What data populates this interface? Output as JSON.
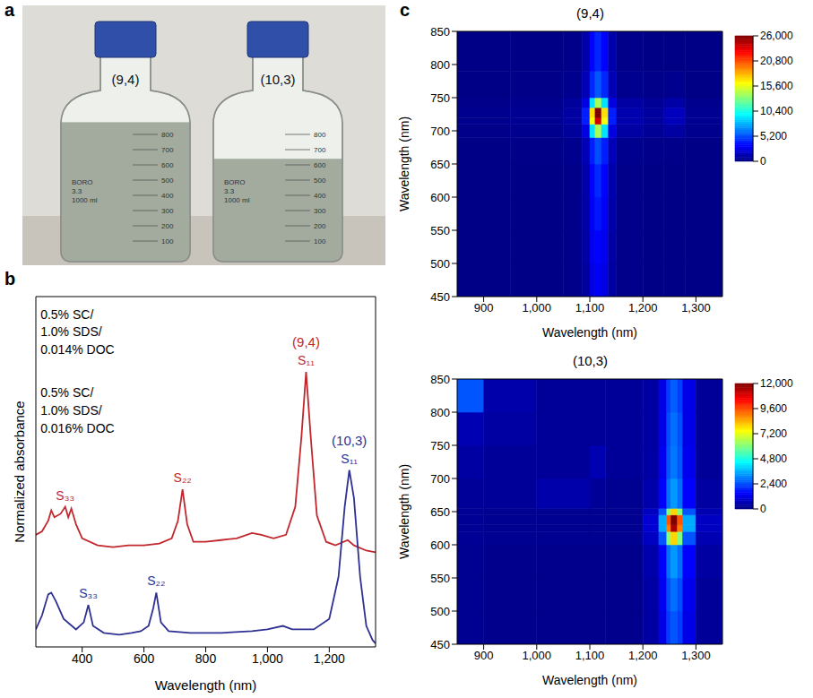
{
  "photo": {
    "label": "a",
    "bottles": [
      {
        "name": "(9,4)",
        "liquid_ml": 880
      },
      {
        "name": "(10,3)",
        "liquid_ml": 640
      }
    ],
    "graduations": [
      100,
      200,
      300,
      400,
      500,
      600,
      700,
      800
    ],
    "marking": [
      "BORO",
      "3.3",
      "1000 ml"
    ]
  },
  "chart_data": [
    {
      "label": "b",
      "type": "line",
      "xlabel": "Wavelength (nm)",
      "ylabel": "Normalized absorbance",
      "xlim": [
        250,
        1350
      ],
      "xticks": [
        400,
        600,
        800,
        {
          "value": 1000,
          "label": "1,000"
        },
        {
          "value": 1200,
          "label": "1,200"
        }
      ],
      "ylim": [
        0,
        2
      ],
      "tick_labels": "x",
      "series": [
        {
          "name": "(9,4)",
          "color": "#c1272d",
          "conditions": [
            "0.5% SC/",
            "1.0% SDS/",
            "0.014% DOC"
          ],
          "peaks": [
            {
              "label": "S₃₃",
              "x": 345
            },
            {
              "label": "S₂₂",
              "x": 725
            },
            {
              "label": "S₁₁",
              "x": 1125
            }
          ],
          "x": [
            250,
            270,
            290,
            300,
            310,
            330,
            345,
            355,
            365,
            380,
            400,
            450,
            500,
            550,
            600,
            650,
            690,
            710,
            725,
            740,
            760,
            800,
            850,
            900,
            950,
            980,
            1020,
            1060,
            1090,
            1110,
            1125,
            1140,
            1160,
            1190,
            1220,
            1260,
            1280,
            1320,
            1350
          ],
          "values": [
            0.64,
            0.66,
            0.72,
            0.78,
            0.74,
            0.76,
            0.8,
            0.74,
            0.79,
            0.7,
            0.62,
            0.58,
            0.57,
            0.58,
            0.58,
            0.59,
            0.62,
            0.72,
            0.9,
            0.7,
            0.6,
            0.6,
            0.61,
            0.62,
            0.65,
            0.64,
            0.62,
            0.64,
            0.8,
            1.2,
            1.57,
            1.2,
            0.75,
            0.6,
            0.58,
            0.61,
            0.58,
            0.55,
            0.54
          ]
        },
        {
          "name": "(10,3)",
          "color": "#2e3192",
          "conditions": [
            "0.5% SC/",
            "1.0% SDS/",
            "0.016% DOC"
          ],
          "peaks": [
            {
              "label": "S₃₃",
              "x": 420
            },
            {
              "label": "S₂₂",
              "x": 640
            },
            {
              "label": "S₁₁",
              "x": 1265
            }
          ],
          "x": [
            250,
            270,
            290,
            300,
            315,
            340,
            380,
            405,
            420,
            435,
            470,
            520,
            560,
            590,
            615,
            630,
            640,
            655,
            680,
            750,
            850,
            950,
            1000,
            1050,
            1080,
            1150,
            1200,
            1230,
            1250,
            1265,
            1280,
            1300,
            1320,
            1340,
            1350
          ],
          "values": [
            0.1,
            0.18,
            0.3,
            0.31,
            0.26,
            0.16,
            0.1,
            0.14,
            0.24,
            0.12,
            0.08,
            0.07,
            0.08,
            0.09,
            0.12,
            0.22,
            0.31,
            0.14,
            0.09,
            0.08,
            0.08,
            0.09,
            0.1,
            0.12,
            0.1,
            0.1,
            0.16,
            0.4,
            0.8,
            1.01,
            0.85,
            0.4,
            0.12,
            0.04,
            0.02
          ]
        }
      ]
    },
    {
      "label": "c",
      "type": "heatmap",
      "title": "(9,4)",
      "xlabel": "Wavelength (nm)",
      "ylabel": "Wavelength (nm)",
      "xlim": [
        850,
        1350
      ],
      "xticks": [
        900,
        {
          "value": 1000,
          "label": "1,000"
        },
        {
          "value": 1100,
          "label": "1,100"
        },
        {
          "value": 1200,
          "label": "1,200"
        },
        {
          "value": 1300,
          "label": "1,300"
        }
      ],
      "ylim": [
        450,
        850
      ],
      "yticks": [
        450,
        500,
        550,
        600,
        650,
        700,
        750,
        800,
        850
      ],
      "x_bins": [
        850,
        950,
        1050,
        1085,
        1100,
        1110,
        1122,
        1135,
        1150,
        1200,
        1240,
        1280,
        1350
      ],
      "y_bins": [
        450,
        500,
        550,
        600,
        650,
        690,
        710,
        720,
        735,
        750,
        790,
        850
      ],
      "cells": [
        [
          200,
          200,
          300,
          800,
          2500,
          3000,
          2500,
          800,
          300,
          200,
          200,
          200
        ],
        [
          200,
          200,
          300,
          900,
          2800,
          3300,
          2800,
          900,
          300,
          200,
          200,
          200
        ],
        [
          200,
          200,
          300,
          1000,
          3000,
          3800,
          3000,
          1000,
          300,
          200,
          200,
          200
        ],
        [
          200,
          200,
          300,
          1100,
          3300,
          4300,
          3300,
          1100,
          300,
          200,
          200,
          200
        ],
        [
          200,
          250,
          400,
          1400,
          4000,
          5200,
          4000,
          1400,
          400,
          300,
          300,
          200
        ],
        [
          300,
          400,
          700,
          2500,
          9000,
          14000,
          9000,
          2500,
          900,
          600,
          900,
          400
        ],
        [
          400,
          500,
          900,
          4000,
          16000,
          24000,
          16000,
          4000,
          1200,
          800,
          1500,
          500
        ],
        [
          400,
          500,
          900,
          4000,
          17000,
          26000,
          17000,
          4000,
          1200,
          800,
          1600,
          500
        ],
        [
          300,
          400,
          700,
          2500,
          9000,
          14000,
          9000,
          2500,
          900,
          600,
          1000,
          400
        ],
        [
          200,
          250,
          400,
          1400,
          4200,
          5500,
          4200,
          1400,
          400,
          300,
          400,
          200
        ],
        [
          200,
          200,
          300,
          1100,
          3300,
          4200,
          3300,
          1100,
          300,
          200,
          200,
          200
        ]
      ],
      "colorbar": {
        "range": [
          0,
          26000
        ],
        "ticks": [
          0,
          {
            "value": 5200,
            "label": "5,200"
          },
          {
            "value": 10400,
            "label": "10,400"
          },
          {
            "value": 15600,
            "label": "15,600"
          },
          {
            "value": 20800,
            "label": "20,800"
          },
          {
            "value": 26000,
            "label": "26,000"
          }
        ]
      }
    },
    {
      "type": "heatmap",
      "title": "(10,3)",
      "xlabel": "Wavelength (nm)",
      "ylabel": "Wavelength (nm)",
      "xlim": [
        850,
        1350
      ],
      "xticks": [
        900,
        {
          "value": 1000,
          "label": "1,000"
        },
        {
          "value": 1100,
          "label": "1,100"
        },
        {
          "value": 1200,
          "label": "1,200"
        },
        {
          "value": 1300,
          "label": "1,300"
        }
      ],
      "ylim": [
        450,
        850
      ],
      "yticks": [
        450,
        500,
        550,
        600,
        650,
        700,
        750,
        800,
        850
      ],
      "x_bins": [
        850,
        900,
        1000,
        1100,
        1130,
        1200,
        1230,
        1245,
        1253,
        1265,
        1275,
        1300,
        1350
      ],
      "y_bins": [
        450,
        500,
        550,
        600,
        620,
        630,
        645,
        655,
        700,
        750,
        800,
        850
      ],
      "cells": [
        [
          200,
          150,
          150,
          150,
          150,
          400,
          1200,
          2200,
          2500,
          2200,
          1200,
          300
        ],
        [
          200,
          150,
          150,
          150,
          150,
          400,
          1300,
          2400,
          2800,
          2400,
          1300,
          300
        ],
        [
          200,
          150,
          150,
          150,
          150,
          500,
          1500,
          2800,
          3300,
          2800,
          1500,
          400
        ],
        [
          250,
          200,
          200,
          200,
          200,
          800,
          2500,
          6000,
          8000,
          6000,
          2500,
          600
        ],
        [
          250,
          200,
          200,
          200,
          200,
          1000,
          3500,
          9000,
          11500,
          9000,
          3500,
          800
        ],
        [
          250,
          200,
          200,
          200,
          200,
          1000,
          3500,
          9500,
          12000,
          9500,
          3500,
          800
        ],
        [
          250,
          200,
          200,
          200,
          200,
          800,
          2500,
          6000,
          8000,
          6000,
          2500,
          600
        ],
        [
          300,
          300,
          500,
          300,
          200,
          500,
          1500,
          2800,
          3300,
          2800,
          1500,
          400
        ],
        [
          400,
          300,
          300,
          600,
          300,
          400,
          1300,
          2500,
          2900,
          2500,
          1300,
          300
        ],
        [
          600,
          400,
          300,
          300,
          300,
          400,
          1200,
          2400,
          2800,
          2400,
          1200,
          300
        ],
        [
          2500,
          500,
          300,
          300,
          300,
          400,
          1200,
          2200,
          2600,
          2200,
          1200,
          300
        ]
      ],
      "colorbar": {
        "range": [
          0,
          12000
        ],
        "ticks": [
          0,
          {
            "value": 2400,
            "label": "2,400"
          },
          {
            "value": 4800,
            "label": "4,800"
          },
          {
            "value": 7200,
            "label": "7,200"
          },
          {
            "value": 9600,
            "label": "9,600"
          },
          {
            "value": 12000,
            "label": "12,000"
          }
        ]
      }
    }
  ]
}
